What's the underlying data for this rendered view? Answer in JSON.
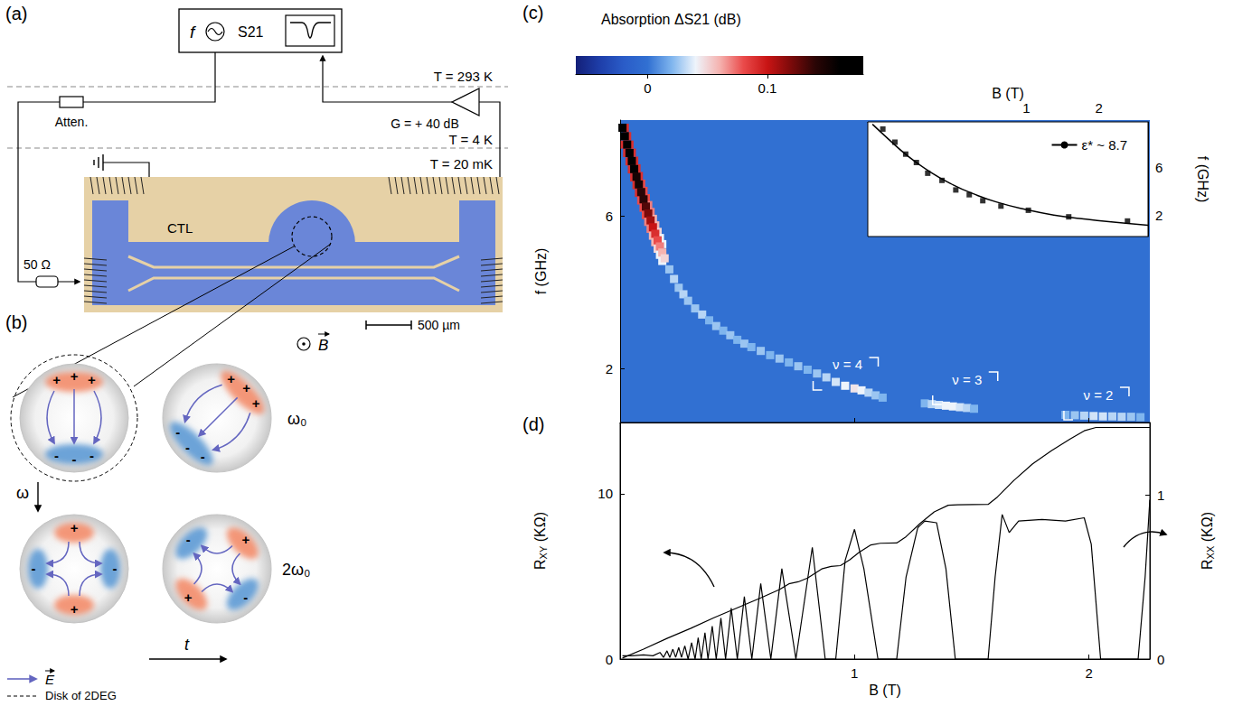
{
  "panel_a": {
    "letter": "(a)",
    "source": "f",
    "analyzer": "S21",
    "stages": [
      "T = 293 K",
      "T = 4 K",
      "T = 20 mK"
    ],
    "attenuator": "Atten.",
    "amplifier": "G = + 40 dB",
    "termination": "50 Ω",
    "line": "CTL",
    "scale_bar": "500 µm"
  },
  "panel_b": {
    "letter": "(b)",
    "field": "B",
    "frequency_axis": "ω",
    "time_axis": "t",
    "modes": [
      "ω₀",
      "2ω₀"
    ],
    "charges": {
      "positive": "+",
      "negative": "-"
    },
    "legend": {
      "field_arrow": "E",
      "disk": "Disk of 2DEG"
    }
  },
  "chart_data": [
    {
      "type": "heatmap",
      "letter": "(c)",
      "title": "Absorption ΔS21 (dB)",
      "ylabel": "f (GHz)",
      "xlim": [
        0,
        2.26
      ],
      "xticks": [
        1,
        2
      ],
      "ylim": [
        0.6,
        8.5
      ],
      "yticks": [
        2,
        6
      ],
      "tick_labels": "y",
      "grid": false,
      "colorbar_range": [
        -0.06,
        0.18
      ],
      "colorbar_ticks": [
        0,
        0.1
      ],
      "fill_value": 0,
      "points": [
        [
          0.01,
          8.52,
          0.09
        ],
        [
          0.02,
          8.3,
          0.09
        ],
        [
          0.03,
          8.08,
          0.09
        ],
        [
          0.04,
          7.86,
          0.09
        ],
        [
          0.05,
          7.65,
          0.09
        ],
        [
          0.06,
          7.44,
          0.09
        ],
        [
          0.07,
          7.24,
          0.09
        ],
        [
          0.08,
          7.04,
          0.09
        ],
        [
          0.09,
          6.84,
          0.08
        ],
        [
          0.1,
          6.65,
          0.08
        ],
        [
          0.11,
          6.46,
          0.08
        ],
        [
          0.12,
          6.28,
          0.07
        ],
        [
          0.13,
          6.1,
          0.07
        ],
        [
          0.14,
          5.92,
          0.06
        ],
        [
          0.15,
          5.75,
          0.06
        ],
        [
          0.16,
          5.58,
          0.05
        ],
        [
          0.17,
          5.42,
          0.04
        ],
        [
          0.18,
          5.26,
          0.04
        ],
        [
          0.02,
          7.86,
          0.09
        ],
        [
          0.03,
          7.64,
          0.09
        ],
        [
          0.04,
          7.42,
          0.09
        ],
        [
          0.05,
          7.21,
          0.09
        ],
        [
          0.06,
          7.0,
          0.09
        ],
        [
          0.07,
          6.8,
          0.09
        ],
        [
          0.08,
          6.6,
          0.09
        ],
        [
          0.09,
          6.4,
          0.08
        ],
        [
          0.1,
          6.21,
          0.08
        ],
        [
          0.11,
          6.02,
          0.08
        ],
        [
          0.12,
          5.84,
          0.07
        ],
        [
          0.13,
          5.66,
          0.07
        ],
        [
          0.14,
          5.48,
          0.06
        ],
        [
          0.15,
          5.31,
          0.06
        ],
        [
          0.16,
          5.14,
          0.05
        ],
        [
          0.17,
          4.98,
          0.04
        ],
        [
          0.18,
          4.82,
          0.04
        ],
        [
          0.01,
          8.3,
          0.17
        ],
        [
          0.02,
          8.08,
          0.17
        ],
        [
          0.03,
          7.86,
          0.16
        ],
        [
          0.04,
          7.64,
          0.17
        ],
        [
          0.05,
          7.43,
          0.16
        ],
        [
          0.06,
          7.22,
          0.16
        ],
        [
          0.07,
          7.02,
          0.15
        ],
        [
          0.08,
          6.82,
          0.15
        ],
        [
          0.09,
          6.62,
          0.14
        ],
        [
          0.1,
          6.43,
          0.14
        ],
        [
          0.11,
          6.24,
          0.13
        ],
        [
          0.12,
          6.06,
          0.12
        ],
        [
          0.13,
          5.88,
          0.11
        ],
        [
          0.14,
          5.7,
          0.1
        ],
        [
          0.15,
          5.53,
          0.09
        ],
        [
          0.16,
          5.36,
          0.08
        ],
        [
          0.17,
          5.2,
          0.07
        ],
        [
          0.18,
          5.04,
          0.06
        ],
        [
          0.19,
          4.89,
          0.05
        ],
        [
          0.21,
          4.6,
          0.025
        ],
        [
          0.23,
          4.35,
          0.03
        ],
        [
          0.25,
          4.12,
          0.025
        ],
        [
          0.27,
          3.95,
          0.03
        ],
        [
          0.29,
          3.78,
          0.025
        ],
        [
          0.32,
          3.58,
          0.025
        ],
        [
          0.35,
          3.42,
          0.03
        ],
        [
          0.38,
          3.27,
          0.02
        ],
        [
          0.41,
          3.12,
          0.025
        ],
        [
          0.44,
          3.0,
          0.02
        ],
        [
          0.47,
          2.88,
          0.025
        ],
        [
          0.5,
          2.76,
          0.02
        ],
        [
          0.53,
          2.66,
          0.025
        ],
        [
          0.56,
          2.57,
          0.02
        ],
        [
          0.6,
          2.47,
          0.025
        ],
        [
          0.64,
          2.36,
          0.02
        ],
        [
          0.68,
          2.27,
          0.025
        ],
        [
          0.72,
          2.17,
          0.02
        ],
        [
          0.76,
          2.07,
          0.025
        ],
        [
          0.8,
          1.98,
          0.02
        ],
        [
          0.84,
          1.88,
          0.025
        ],
        [
          0.88,
          1.78,
          0.03
        ],
        [
          0.92,
          1.66,
          0.035
        ],
        [
          0.96,
          1.56,
          0.04
        ],
        [
          1.0,
          1.49,
          0.045
        ],
        [
          1.03,
          1.44,
          0.04
        ],
        [
          1.06,
          1.38,
          0.03
        ],
        [
          1.09,
          1.31,
          0.025
        ],
        [
          1.12,
          1.25,
          0.02
        ],
        [
          1.3,
          1.1,
          0.02
        ],
        [
          1.33,
          1.08,
          0.03
        ],
        [
          1.36,
          1.06,
          0.035
        ],
        [
          1.39,
          1.04,
          0.04
        ],
        [
          1.42,
          1.02,
          0.04
        ],
        [
          1.45,
          1.0,
          0.035
        ],
        [
          1.48,
          0.98,
          0.03
        ],
        [
          1.51,
          0.96,
          0.02
        ],
        [
          1.9,
          0.8,
          0.02
        ],
        [
          1.94,
          0.79,
          0.025
        ],
        [
          1.98,
          0.78,
          0.03
        ],
        [
          2.02,
          0.77,
          0.035
        ],
        [
          2.06,
          0.76,
          0.035
        ],
        [
          2.1,
          0.76,
          0.03
        ],
        [
          2.14,
          0.75,
          0.03
        ],
        [
          2.18,
          0.75,
          0.025
        ],
        [
          2.22,
          0.74,
          0.02
        ]
      ],
      "annotations": [
        {
          "text": "ν = 4",
          "x": 0.97,
          "y": 2.11
        },
        {
          "text": "ν = 3",
          "x": 1.48,
          "y": 1.73
        },
        {
          "text": "ν = 2",
          "x": 2.04,
          "y": 1.33
        }
      ]
    },
    {
      "type": "scatter",
      "xlabel": "B (T)",
      "ylabel": "f (GHz)",
      "log": "x",
      "xlim": [
        0.22,
        3.2
      ],
      "xticks": [
        1,
        2
      ],
      "ylim": [
        0.2,
        9.8
      ],
      "yticks": [
        2,
        6
      ],
      "grid": false,
      "legend": "upper right",
      "series": [
        {
          "type": "scatter",
          "marker": "square",
          "color": "#000000",
          "x": [
            0.254,
            0.285,
            0.316,
            0.35,
            0.39,
            0.447,
            0.51,
            0.58,
            0.66,
            0.785,
            1.02,
            1.5,
            2.63
          ],
          "values": [
            9.2,
            8.1,
            7.1,
            6.4,
            5.5,
            4.9,
            4.1,
            3.7,
            3.2,
            2.75,
            2.4,
            1.85,
            1.5
          ]
        },
        {
          "name": "ε* ~ 8.7",
          "type": "line",
          "line_style": "solid",
          "color": "#000000",
          "x": [
            0.23,
            0.27,
            0.32,
            0.4,
            0.5,
            0.6,
            0.75,
            1.0,
            1.3,
            1.7,
            2.2,
            3.2
          ],
          "values": [
            9.6,
            8.3,
            7.0,
            5.6,
            4.5,
            3.8,
            3.1,
            2.45,
            2.0,
            1.7,
            1.45,
            1.15
          ]
        }
      ]
    },
    {
      "type": "line",
      "letter": "(d)",
      "xlabel": "B (T)",
      "xlim": [
        0,
        2.26
      ],
      "xticks": [
        1,
        2
      ],
      "ylabel": {
        "symbol": "R",
        "subscript": "XY",
        "unit": "(KΩ)"
      },
      "ylim": [
        0,
        14.3
      ],
      "yticks": [
        0,
        10
      ],
      "y2label": {
        "symbol": "R",
        "subscript": "XX",
        "unit": "(KΩ)"
      },
      "y2lim": [
        0,
        1.44
      ],
      "y2ticks": [
        0,
        1
      ],
      "grid": false,
      "series": [
        {
          "axis": "y",
          "color": "#000000",
          "x": [
            0.01,
            0.1,
            0.2,
            0.3,
            0.4,
            0.5,
            0.6,
            0.68,
            0.72,
            0.76,
            0.8,
            0.86,
            0.9,
            0.94,
            0.98,
            1.02,
            1.07,
            1.11,
            1.18,
            1.22,
            1.28,
            1.34,
            1.4,
            1.44,
            1.57,
            1.61,
            1.68,
            1.76,
            1.84,
            1.92,
            1.98,
            2.03,
            2.26
          ],
          "values": [
            0.06,
            0.6,
            1.25,
            1.85,
            2.5,
            3.1,
            3.7,
            4.2,
            4.55,
            4.67,
            4.9,
            5.45,
            5.6,
            5.65,
            6.0,
            6.45,
            6.9,
            7.0,
            7.02,
            7.4,
            8.2,
            8.9,
            9.3,
            9.33,
            9.35,
            9.8,
            10.8,
            11.8,
            12.6,
            13.3,
            13.8,
            14.0,
            14.0
          ]
        },
        {
          "axis": "y2",
          "color": "#000000",
          "x": [
            0.01,
            0.05,
            0.1,
            0.14,
            0.17,
            0.185,
            0.2,
            0.212,
            0.225,
            0.237,
            0.25,
            0.262,
            0.276,
            0.29,
            0.305,
            0.32,
            0.333,
            0.346,
            0.362,
            0.375,
            0.393,
            0.41,
            0.43,
            0.45,
            0.474,
            0.5,
            0.53,
            0.562,
            0.6,
            0.643,
            0.69,
            0.75,
            0.82,
            0.875,
            0.92,
            0.96,
            1.0,
            1.04,
            1.1,
            1.18,
            1.22,
            1.27,
            1.3,
            1.35,
            1.39,
            1.43,
            1.57,
            1.6,
            1.63,
            1.66,
            1.7,
            1.8,
            1.9,
            1.98,
            2.01,
            2.05,
            2.21,
            2.24,
            2.26
          ],
          "values": [
            0.02,
            0.02,
            0.025,
            0.02,
            0.04,
            0.01,
            0.05,
            0.01,
            0.06,
            0.01,
            0.07,
            0.01,
            0.08,
            0.0,
            0.1,
            0.0,
            0.13,
            0.0,
            0.16,
            0.0,
            0.2,
            0.0,
            0.25,
            0.0,
            0.31,
            0.0,
            0.38,
            0.0,
            0.46,
            0.0,
            0.55,
            0.0,
            0.68,
            0.0,
            0.0,
            0.6,
            0.79,
            0.55,
            0.0,
            0.0,
            0.5,
            0.8,
            0.84,
            0.83,
            0.55,
            0.0,
            0.0,
            0.5,
            0.88,
            0.77,
            0.84,
            0.85,
            0.84,
            0.86,
            0.7,
            0.0,
            0.0,
            0.5,
            0.97
          ]
        }
      ]
    }
  ]
}
